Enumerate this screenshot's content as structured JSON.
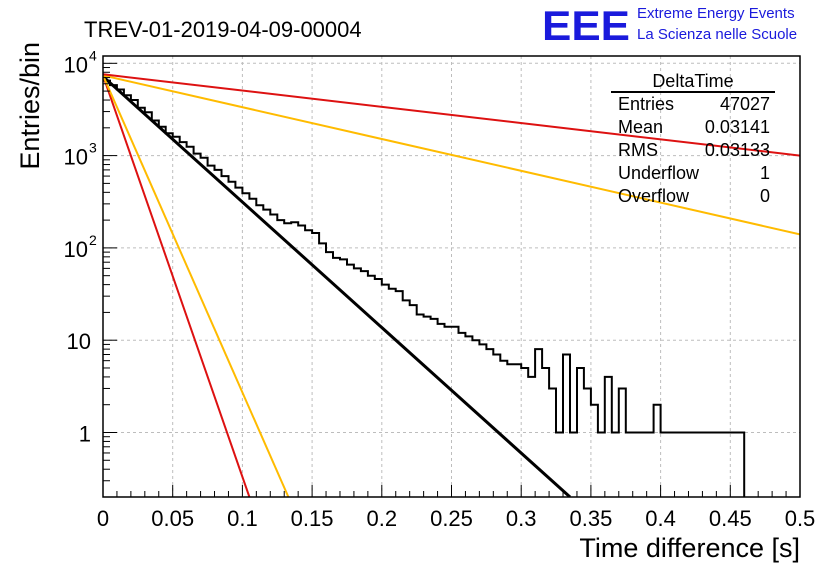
{
  "title": "TREV-01-2019-04-09-00004",
  "logo": {
    "mark": "EEE",
    "line1": "Extreme Energy Events",
    "line2": "La Scienza nelle Scuole",
    "color": "#1a1adc"
  },
  "stats": {
    "name": "DeltaTime",
    "rows": [
      {
        "label": "Entries",
        "value": "47027"
      },
      {
        "label": "Mean",
        "value": "0.03141"
      },
      {
        "label": "RMS",
        "value": "0.03133"
      },
      {
        "label": "Underflow",
        "value": "1"
      },
      {
        "label": "Overflow",
        "value": "0"
      }
    ]
  },
  "chart_data": {
    "type": "line",
    "xlabel": "Time difference [s]",
    "ylabel": "Entries/bin",
    "xlim": [
      0,
      0.5
    ],
    "ylim": [
      0.2,
      12000
    ],
    "yscale": "log",
    "grid": true,
    "xticks": [
      {
        "value": 0,
        "label": "0"
      },
      {
        "value": 0.05,
        "label": "0.05"
      },
      {
        "value": 0.1,
        "label": "0.1"
      },
      {
        "value": 0.15,
        "label": "0.15"
      },
      {
        "value": 0.2,
        "label": "0.2"
      },
      {
        "value": 0.25,
        "label": "0.25"
      },
      {
        "value": 0.3,
        "label": "0.3"
      },
      {
        "value": 0.35,
        "label": "0.35"
      },
      {
        "value": 0.4,
        "label": "0.4"
      },
      {
        "value": 0.45,
        "label": "0.45"
      },
      {
        "value": 0.5,
        "label": "0.5"
      }
    ],
    "yticks": [
      {
        "value": 1,
        "base": "1",
        "exp": ""
      },
      {
        "value": 10,
        "base": "10",
        "exp": ""
      },
      {
        "value": 100,
        "base": "10",
        "exp": "2"
      },
      {
        "value": 1000,
        "base": "10",
        "exp": "3"
      },
      {
        "value": 10000,
        "base": "10",
        "exp": "4"
      }
    ],
    "histogram": {
      "bin_width": 0.005,
      "color": "#000000",
      "counts": [
        6500,
        5800,
        5200,
        4500,
        4000,
        3300,
        2950,
        2400,
        2050,
        1750,
        1600,
        1400,
        1250,
        1050,
        950,
        780,
        700,
        600,
        520,
        450,
        390,
        340,
        290,
        260,
        230,
        200,
        185,
        190,
        175,
        155,
        145,
        112,
        90,
        78,
        75,
        66,
        60,
        56,
        50,
        46,
        40,
        36,
        34,
        27,
        24,
        19,
        18,
        17,
        15,
        14,
        14,
        12,
        11,
        10,
        9,
        8,
        7,
        6,
        5.5,
        5.5,
        5,
        4,
        8,
        5,
        3,
        1,
        7,
        1,
        5,
        3,
        2,
        1,
        4,
        1,
        3,
        1,
        1,
        1,
        1,
        2,
        1,
        1,
        1,
        1,
        1,
        1,
        1,
        1,
        1,
        1,
        1,
        1
      ]
    },
    "series": [
      {
        "color": "#000000",
        "x": [
          0,
          0.335
        ],
        "y": [
          7200,
          0.2
        ]
      },
      {
        "color": "#dd1111",
        "x": [
          0,
          0.105
        ],
        "y": [
          7400,
          0.2
        ]
      },
      {
        "color": "#ffbb00",
        "x": [
          0,
          0.133
        ],
        "y": [
          7400,
          0.2
        ]
      },
      {
        "color": "#ffbb00",
        "x": [
          0,
          0.5
        ],
        "y": [
          7400,
          140
        ]
      },
      {
        "color": "#dd1111",
        "x": [
          0,
          0.5
        ],
        "y": [
          7600,
          1000
        ]
      }
    ]
  }
}
